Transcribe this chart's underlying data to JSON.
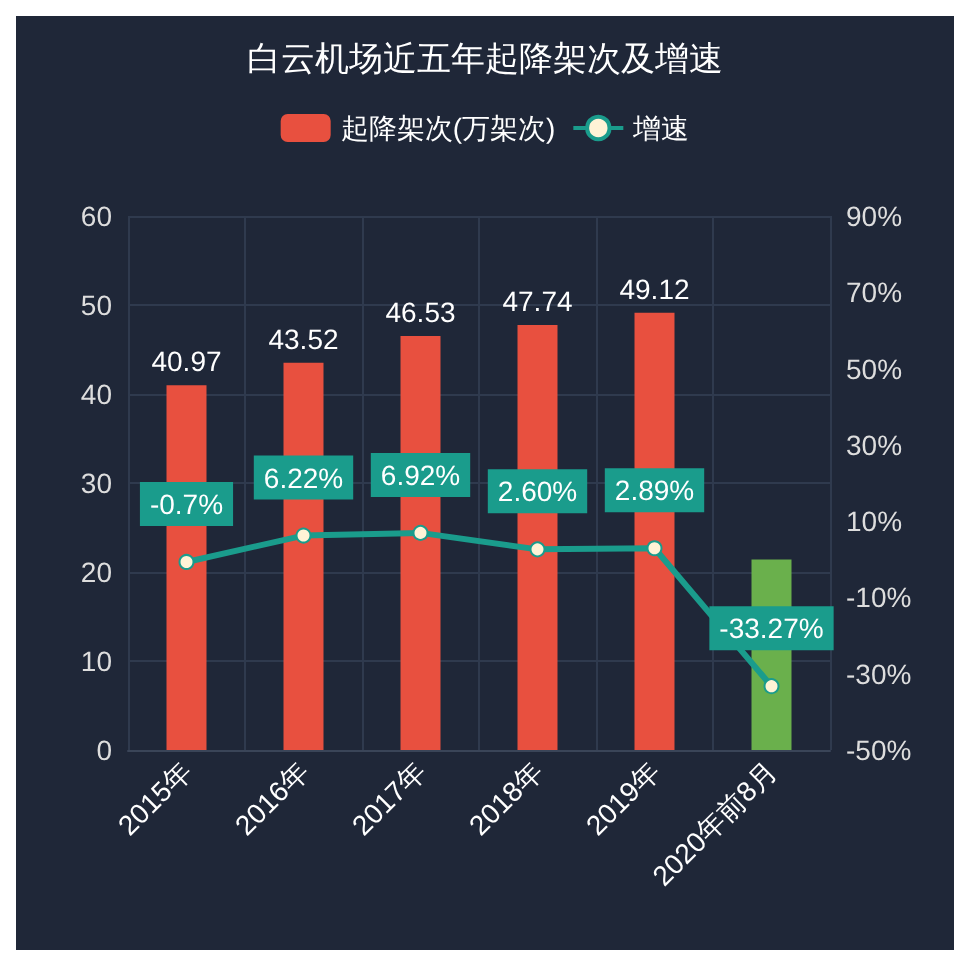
{
  "chart_data": {
    "type": "bar",
    "title": "白云机场近五年起降架次及增速",
    "categories": [
      "2015年",
      "2016年",
      "2017年",
      "2018年",
      "2019年",
      "2020年前8月"
    ],
    "series": [
      {
        "name": "起降架次(万架次)",
        "color": "#e8503f",
        "colors": [
          "#e8503f",
          "#e8503f",
          "#e8503f",
          "#e8503f",
          "#e8503f",
          "#6ab04c"
        ],
        "values": [
          40.97,
          43.52,
          46.53,
          47.74,
          49.12,
          21.4
        ],
        "value_labels": [
          "40.97",
          "43.52",
          "46.53",
          "47.74",
          "49.12",
          null
        ]
      },
      {
        "name": "增速",
        "type": "line",
        "axis": "y2",
        "color": "#1a9c8c",
        "values": [
          -0.7,
          6.22,
          6.92,
          2.6,
          2.89,
          -33.27
        ],
        "value_labels": [
          "-0.7%",
          "6.22%",
          "6.92%",
          "2.60%",
          "2.89%",
          "-33.27%"
        ]
      }
    ],
    "ylim": [
      0,
      60
    ],
    "yticks": [
      0,
      10,
      20,
      30,
      40,
      50,
      60
    ],
    "y2lim": [
      -50,
      90
    ],
    "y2ticks": [
      {
        "value": -50,
        "label": "-50%"
      },
      {
        "value": -30,
        "label": "-30%"
      },
      {
        "value": -10,
        "label": "-10%"
      },
      {
        "value": 10,
        "label": "10%"
      },
      {
        "value": 30,
        "label": "30%"
      },
      {
        "value": 50,
        "label": "50%"
      },
      {
        "value": 70,
        "label": "70%"
      },
      {
        "value": 90,
        "label": "90%"
      }
    ],
    "grid": true,
    "legend": "top",
    "marker": "circle",
    "line_style": "solid"
  }
}
